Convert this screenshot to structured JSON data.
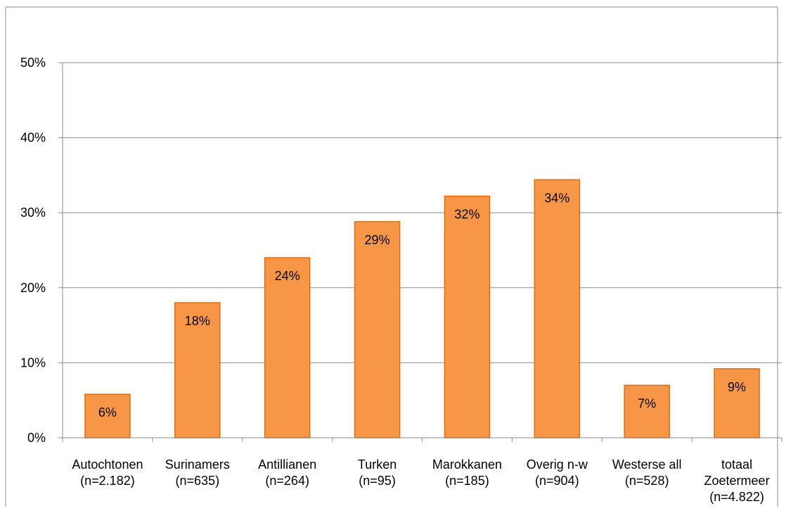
{
  "chart_data": {
    "type": "bar",
    "title": "",
    "xlabel": "",
    "ylabel": "",
    "ylim": [
      0,
      0.5
    ],
    "y_ticks": [
      {
        "value": 0.0,
        "label": "0%"
      },
      {
        "value": 0.1,
        "label": "10%"
      },
      {
        "value": 0.2,
        "label": "20%"
      },
      {
        "value": 0.3,
        "label": "30%"
      },
      {
        "value": 0.4,
        "label": "40%"
      },
      {
        "value": 0.5,
        "label": "50%"
      }
    ],
    "grid": true,
    "legend": "none",
    "bar_color": "#F79646",
    "bar_edge_color": "#E46C0A",
    "categories": [
      [
        "Autochtonen",
        "(n=2.182)"
      ],
      [
        "Surinamers",
        "(n=635)"
      ],
      [
        "Antillianen",
        "(n=264)"
      ],
      [
        "Turken",
        "(n=95)"
      ],
      [
        "Marokkanen",
        "(n=185)"
      ],
      [
        "Overig n-w",
        "(n=904)"
      ],
      [
        "Westerse all",
        "(n=528)"
      ],
      [
        "totaal",
        "Zoetermeer",
        "(n=4.822)"
      ]
    ],
    "values": [
      0.058,
      0.18,
      0.24,
      0.288,
      0.322,
      0.344,
      0.07,
      0.092
    ],
    "data_labels": [
      "6%",
      "18%",
      "24%",
      "29%",
      "32%",
      "34%",
      "7%",
      "9%"
    ]
  }
}
